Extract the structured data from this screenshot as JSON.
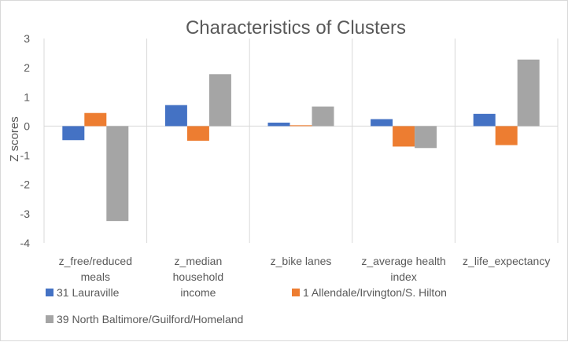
{
  "chart_data": {
    "type": "bar",
    "title": "Characteristics of Clusters",
    "ylabel": "Z scores",
    "xlabel": "",
    "ylim": [
      -4,
      3
    ],
    "yticks": [
      3,
      2,
      1,
      0,
      -1,
      -2,
      -3,
      -4
    ],
    "grid": "vertical category separators",
    "legend_position": "bottom",
    "categories": [
      [
        "z_free/reduced",
        "meals"
      ],
      [
        "z_median",
        "household",
        "income"
      ],
      [
        "z_bike lanes"
      ],
      [
        "z_average health",
        "index"
      ],
      [
        "z_life_expectancy"
      ]
    ],
    "series": [
      {
        "name": "31 Lauraville",
        "color": "#4472C4",
        "values": [
          -0.48,
          0.72,
          0.12,
          0.24,
          0.42
        ]
      },
      {
        "name": "1 Allendale/Irvington/S. Hilton",
        "color": "#ED7D31",
        "values": [
          0.45,
          -0.5,
          0.03,
          -0.7,
          -0.65
        ]
      },
      {
        "name": "39 North Baltimore/Guilford/Homeland",
        "color": "#A5A5A5",
        "values": [
          -3.25,
          1.78,
          0.67,
          -0.75,
          2.28
        ]
      }
    ]
  }
}
